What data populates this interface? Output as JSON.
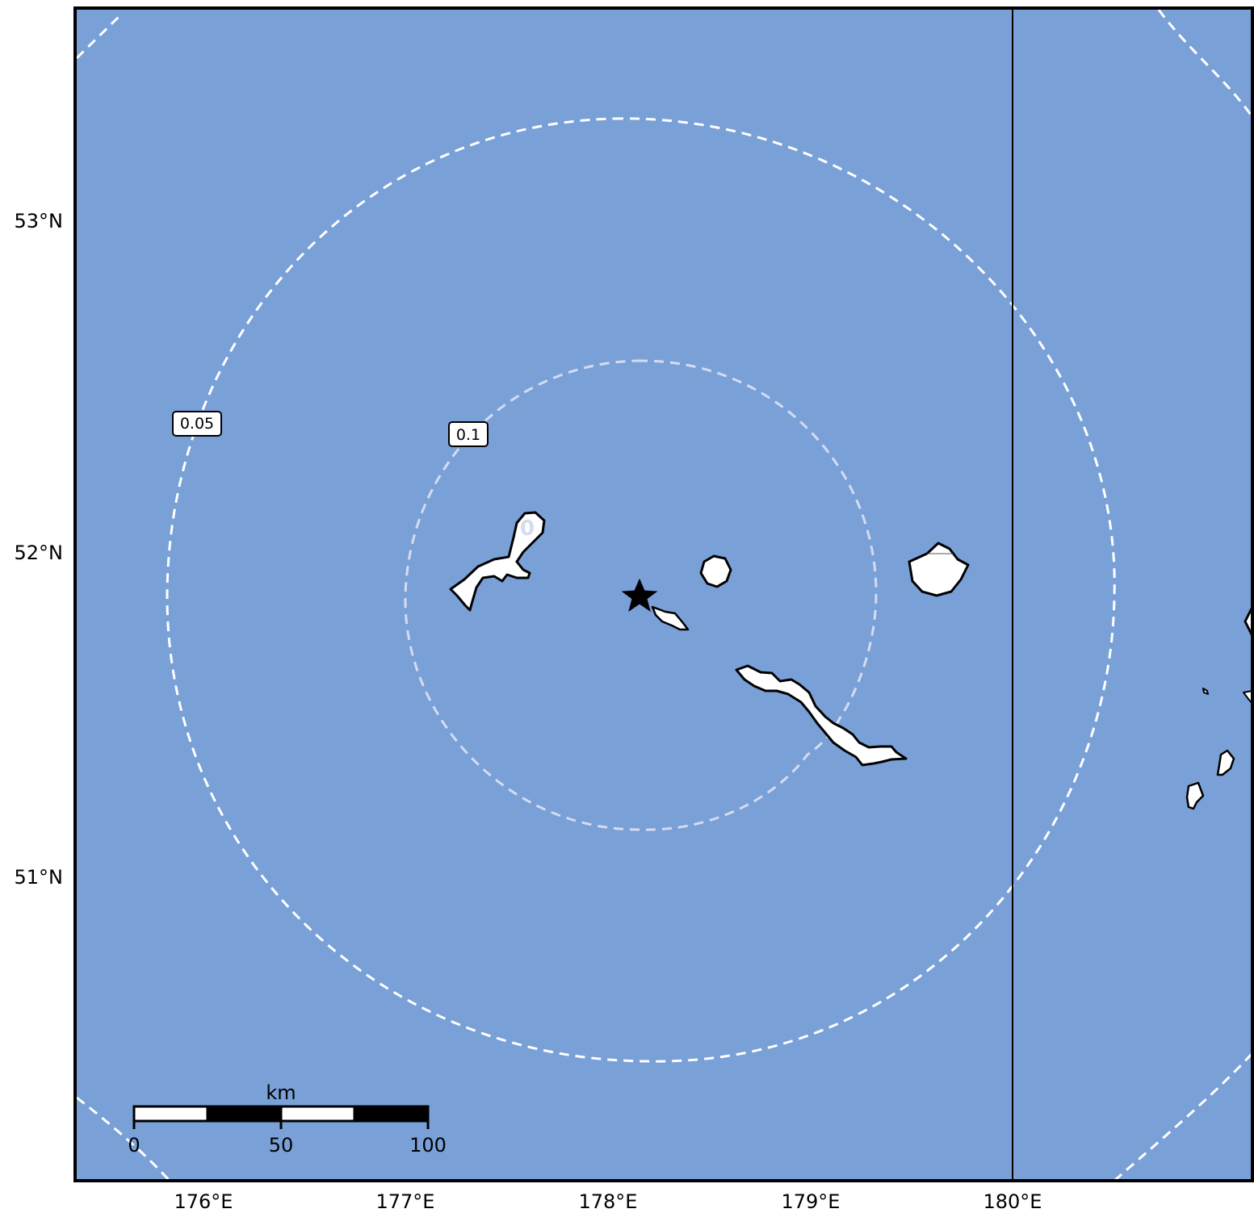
{
  "map": {
    "colors": {
      "ocean": "#7aa0d8",
      "land": "#ffffff",
      "coastline": "#000000",
      "contour_outer": "#ffffff",
      "contour_inner": "#d4dcf2",
      "epicenter": "#000000",
      "dateline": "#000000"
    },
    "epicenter": {
      "name": "epicenter-star-icon",
      "lon": 178.1,
      "lat": 51.85
    },
    "dateline": {
      "lon": 180
    },
    "lat_ticks": [
      {
        "label": "53°N",
        "value": 53
      },
      {
        "label": "52°N",
        "value": 52
      },
      {
        "label": "51°N",
        "value": 51
      }
    ],
    "lon_ticks": [
      {
        "label": "176°E",
        "value": 176
      },
      {
        "label": "177°E",
        "value": 177
      },
      {
        "label": "178°E",
        "value": 178
      },
      {
        "label": "179°E",
        "value": 179
      },
      {
        "label": "180°E",
        "value": 180
      }
    ],
    "contours": [
      {
        "level": "0.05",
        "label": "0.05"
      },
      {
        "level": "0.1",
        "label": "0.1"
      }
    ],
    "stray_label": "0",
    "scale_bar": {
      "unit": "km",
      "labels": [
        "0",
        "50",
        "100"
      ]
    }
  }
}
